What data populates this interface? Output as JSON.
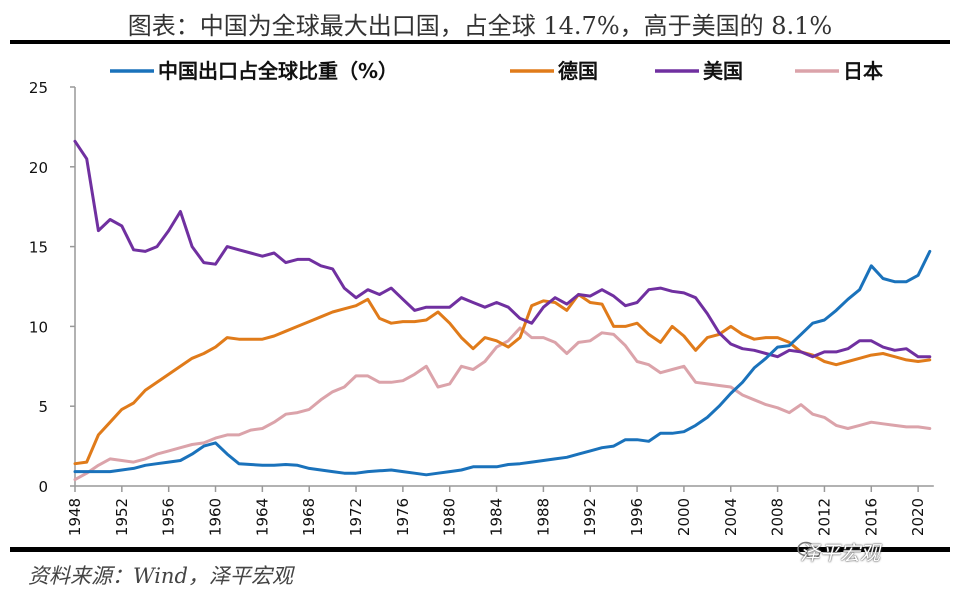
{
  "title": "图表：中国为全球最大出口国，占全球 14.7%，高于美国的 8.1%",
  "source": "资料来源：Wind，泽平宏观",
  "watermark": "泽平宏观",
  "chart_data": {
    "type": "line",
    "title": "图表：中国为全球最大出口国，占全球 14.7%，高于美国的 8.1%",
    "xlabel": "",
    "ylabel": "",
    "ylim": [
      0,
      25
    ],
    "xlim": [
      1948,
      2021
    ],
    "yticks": [
      0,
      5,
      10,
      15,
      20,
      25
    ],
    "xticks": [
      1948,
      1952,
      1956,
      1960,
      1964,
      1968,
      1972,
      1976,
      1980,
      1984,
      1988,
      1992,
      1996,
      2000,
      2004,
      2008,
      2012,
      2016,
      2020
    ],
    "grid": false,
    "legend_position": "top",
    "x_start": 1948,
    "series": [
      {
        "name": "中国出口占全球比重（%）",
        "color": "#1a72bb",
        "values": [
          0.9,
          0.9,
          0.9,
          0.9,
          1.0,
          1.1,
          1.3,
          1.4,
          1.5,
          1.6,
          2.0,
          2.5,
          2.7,
          2.0,
          1.4,
          1.35,
          1.3,
          1.3,
          1.35,
          1.3,
          1.1,
          1.0,
          0.9,
          0.8,
          0.8,
          0.9,
          0.95,
          1.0,
          0.9,
          0.8,
          0.7,
          0.8,
          0.9,
          1.0,
          1.2,
          1.2,
          1.2,
          1.35,
          1.4,
          1.5,
          1.6,
          1.7,
          1.8,
          2.0,
          2.2,
          2.4,
          2.5,
          2.9,
          2.9,
          2.8,
          3.3,
          3.3,
          3.4,
          3.8,
          4.3,
          5.0,
          5.8,
          6.5,
          7.4,
          8.0,
          8.7,
          8.8,
          9.5,
          10.2,
          10.4,
          11.0,
          11.7,
          12.3,
          13.8,
          13.0,
          12.8,
          12.8,
          13.2,
          14.7
        ]
      },
      {
        "name": "德国",
        "color": "#e07b1a",
        "values": [
          1.4,
          1.5,
          3.2,
          4.0,
          4.8,
          5.2,
          6.0,
          6.5,
          7.0,
          7.5,
          8.0,
          8.3,
          8.7,
          9.3,
          9.2,
          9.2,
          9.2,
          9.4,
          9.7,
          10.0,
          10.3,
          10.6,
          10.9,
          11.1,
          11.3,
          11.7,
          10.5,
          10.2,
          10.3,
          10.3,
          10.4,
          10.9,
          10.2,
          9.3,
          8.6,
          9.3,
          9.1,
          8.7,
          9.3,
          11.3,
          11.6,
          11.5,
          11.0,
          12.0,
          11.5,
          11.4,
          10.0,
          10.0,
          10.2,
          9.5,
          9.0,
          10.0,
          9.4,
          8.5,
          9.3,
          9.5,
          10.0,
          9.5,
          9.2,
          9.3,
          9.3,
          9.0,
          8.4,
          8.2,
          7.8,
          7.6,
          7.8,
          8.0,
          8.2,
          8.3,
          8.1,
          7.9,
          7.8,
          7.9
        ]
      },
      {
        "name": "美国",
        "color": "#7030a0",
        "values": [
          21.6,
          20.5,
          16.0,
          16.7,
          16.3,
          14.8,
          14.7,
          15.0,
          16.0,
          17.2,
          15.0,
          14.0,
          13.9,
          15.0,
          14.8,
          14.6,
          14.4,
          14.6,
          14.0,
          14.2,
          14.2,
          13.8,
          13.6,
          12.4,
          11.8,
          12.3,
          12.0,
          12.4,
          11.7,
          11.0,
          11.2,
          11.2,
          11.2,
          11.8,
          11.5,
          11.2,
          11.5,
          11.2,
          10.5,
          10.2,
          11.2,
          11.8,
          11.4,
          12.0,
          11.9,
          12.3,
          11.9,
          11.3,
          11.5,
          12.3,
          12.4,
          12.2,
          12.1,
          11.8,
          10.8,
          9.6,
          8.9,
          8.6,
          8.5,
          8.3,
          8.1,
          8.5,
          8.4,
          8.1,
          8.4,
          8.4,
          8.6,
          9.1,
          9.1,
          8.7,
          8.5,
          8.6,
          8.1,
          8.1
        ]
      },
      {
        "name": "日本",
        "color": "#dba3aa",
        "values": [
          0.4,
          0.8,
          1.3,
          1.7,
          1.6,
          1.5,
          1.7,
          2.0,
          2.2,
          2.4,
          2.6,
          2.7,
          3.0,
          3.2,
          3.2,
          3.5,
          3.6,
          4.0,
          4.5,
          4.6,
          4.8,
          5.4,
          5.9,
          6.2,
          6.9,
          6.9,
          6.5,
          6.5,
          6.6,
          7.0,
          7.5,
          6.2,
          6.4,
          7.5,
          7.3,
          7.8,
          8.7,
          9.1,
          9.9,
          9.3,
          9.3,
          9.0,
          8.3,
          9.0,
          9.1,
          9.6,
          9.5,
          8.8,
          7.8,
          7.6,
          7.1,
          7.3,
          7.5,
          6.5,
          6.4,
          6.3,
          6.2,
          5.7,
          5.4,
          5.1,
          4.9,
          4.6,
          5.1,
          4.5,
          4.3,
          3.8,
          3.6,
          3.8,
          4.0,
          3.9,
          3.8,
          3.7,
          3.7,
          3.6
        ]
      }
    ]
  }
}
